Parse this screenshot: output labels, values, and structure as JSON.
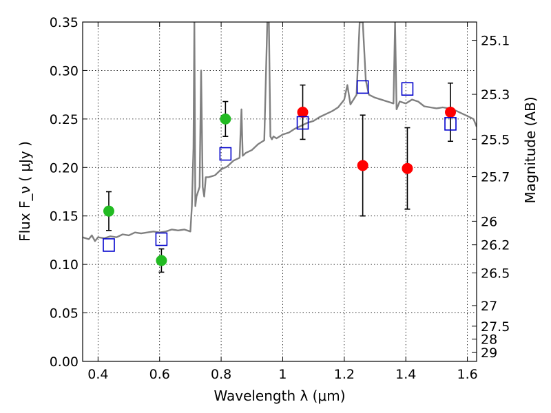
{
  "chart_data": {
    "type": "scatter",
    "xlabel": "Wavelength  λ (μm)",
    "ylabel": "Flux  F_ν  ( μJy )",
    "ylabel_right": "Magnitude (AB)",
    "xlim": [
      0.35,
      1.63
    ],
    "ylim": [
      0.0,
      0.35
    ],
    "grid": true,
    "x_ticks": [
      "0.4",
      "0.6",
      "0.8",
      "1",
      "1.2",
      "1.4",
      "1.6"
    ],
    "y_ticks": [
      "0.00",
      "0.05",
      "0.10",
      "0.15",
      "0.20",
      "0.25",
      "0.30",
      "0.35"
    ],
    "right_ticks": [
      "25.1",
      "25.3",
      "25.5",
      "25.7",
      "26",
      "26.2",
      "26.5",
      "27",
      "27.5",
      "28",
      "29"
    ],
    "series": [
      {
        "marker": "circle",
        "color": "#22bb22",
        "points": [
          {
            "x": 0.435,
            "y": 0.155,
            "err": 0.02
          },
          {
            "x": 0.606,
            "y": 0.104,
            "err": 0.012
          },
          {
            "x": 0.814,
            "y": 0.25,
            "err": 0.018
          }
        ]
      },
      {
        "marker": "circle",
        "color": "#ff0000",
        "points": [
          {
            "x": 1.065,
            "y": 0.257,
            "err": 0.028
          },
          {
            "x": 1.26,
            "y": 0.202,
            "err": 0.052
          },
          {
            "x": 1.405,
            "y": 0.199,
            "err": 0.042
          },
          {
            "x": 1.545,
            "y": 0.257,
            "err": 0.03
          }
        ]
      },
      {
        "marker": "open-square",
        "color": "#0000cc",
        "points": [
          {
            "x": 0.435,
            "y": 0.12
          },
          {
            "x": 0.606,
            "y": 0.126
          },
          {
            "x": 0.814,
            "y": 0.214
          },
          {
            "x": 1.065,
            "y": 0.246
          },
          {
            "x": 1.26,
            "y": 0.283
          },
          {
            "x": 1.405,
            "y": 0.281
          },
          {
            "x": 1.545,
            "y": 0.245
          }
        ]
      }
    ],
    "spectrum": {
      "color": "#808080",
      "x": [
        0.35,
        0.37,
        0.38,
        0.39,
        0.4,
        0.42,
        0.44,
        0.46,
        0.48,
        0.5,
        0.52,
        0.54,
        0.56,
        0.58,
        0.6,
        0.62,
        0.64,
        0.66,
        0.68,
        0.7,
        0.705,
        0.71,
        0.713,
        0.716,
        0.72,
        0.73,
        0.735,
        0.74,
        0.745,
        0.75,
        0.76,
        0.78,
        0.8,
        0.82,
        0.84,
        0.86,
        0.866,
        0.87,
        0.88,
        0.9,
        0.92,
        0.94,
        0.95,
        0.955,
        0.96,
        0.965,
        0.97,
        0.98,
        1.0,
        1.02,
        1.04,
        1.06,
        1.08,
        1.1,
        1.12,
        1.14,
        1.16,
        1.18,
        1.2,
        1.21,
        1.22,
        1.24,
        1.25,
        1.26,
        1.27,
        1.28,
        1.3,
        1.32,
        1.34,
        1.36,
        1.365,
        1.37,
        1.38,
        1.4,
        1.42,
        1.44,
        1.46,
        1.48,
        1.5,
        1.52,
        1.54,
        1.56,
        1.58,
        1.6,
        1.62,
        1.63
      ],
      "y": [
        0.128,
        0.126,
        0.13,
        0.124,
        0.128,
        0.127,
        0.129,
        0.128,
        0.131,
        0.13,
        0.133,
        0.132,
        0.133,
        0.134,
        0.133,
        0.134,
        0.136,
        0.135,
        0.136,
        0.134,
        0.16,
        0.22,
        0.35,
        0.16,
        0.17,
        0.18,
        0.3,
        0.18,
        0.17,
        0.19,
        0.19,
        0.192,
        0.198,
        0.201,
        0.207,
        0.21,
        0.26,
        0.212,
        0.215,
        0.218,
        0.224,
        0.228,
        0.35,
        0.35,
        0.232,
        0.229,
        0.232,
        0.23,
        0.234,
        0.236,
        0.24,
        0.243,
        0.246,
        0.248,
        0.252,
        0.255,
        0.258,
        0.262,
        0.27,
        0.285,
        0.265,
        0.275,
        0.35,
        0.35,
        0.29,
        0.275,
        0.272,
        0.27,
        0.268,
        0.266,
        0.35,
        0.26,
        0.268,
        0.266,
        0.27,
        0.268,
        0.263,
        0.262,
        0.261,
        0.262,
        0.261,
        0.259,
        0.256,
        0.253,
        0.25,
        0.242
      ]
    }
  }
}
